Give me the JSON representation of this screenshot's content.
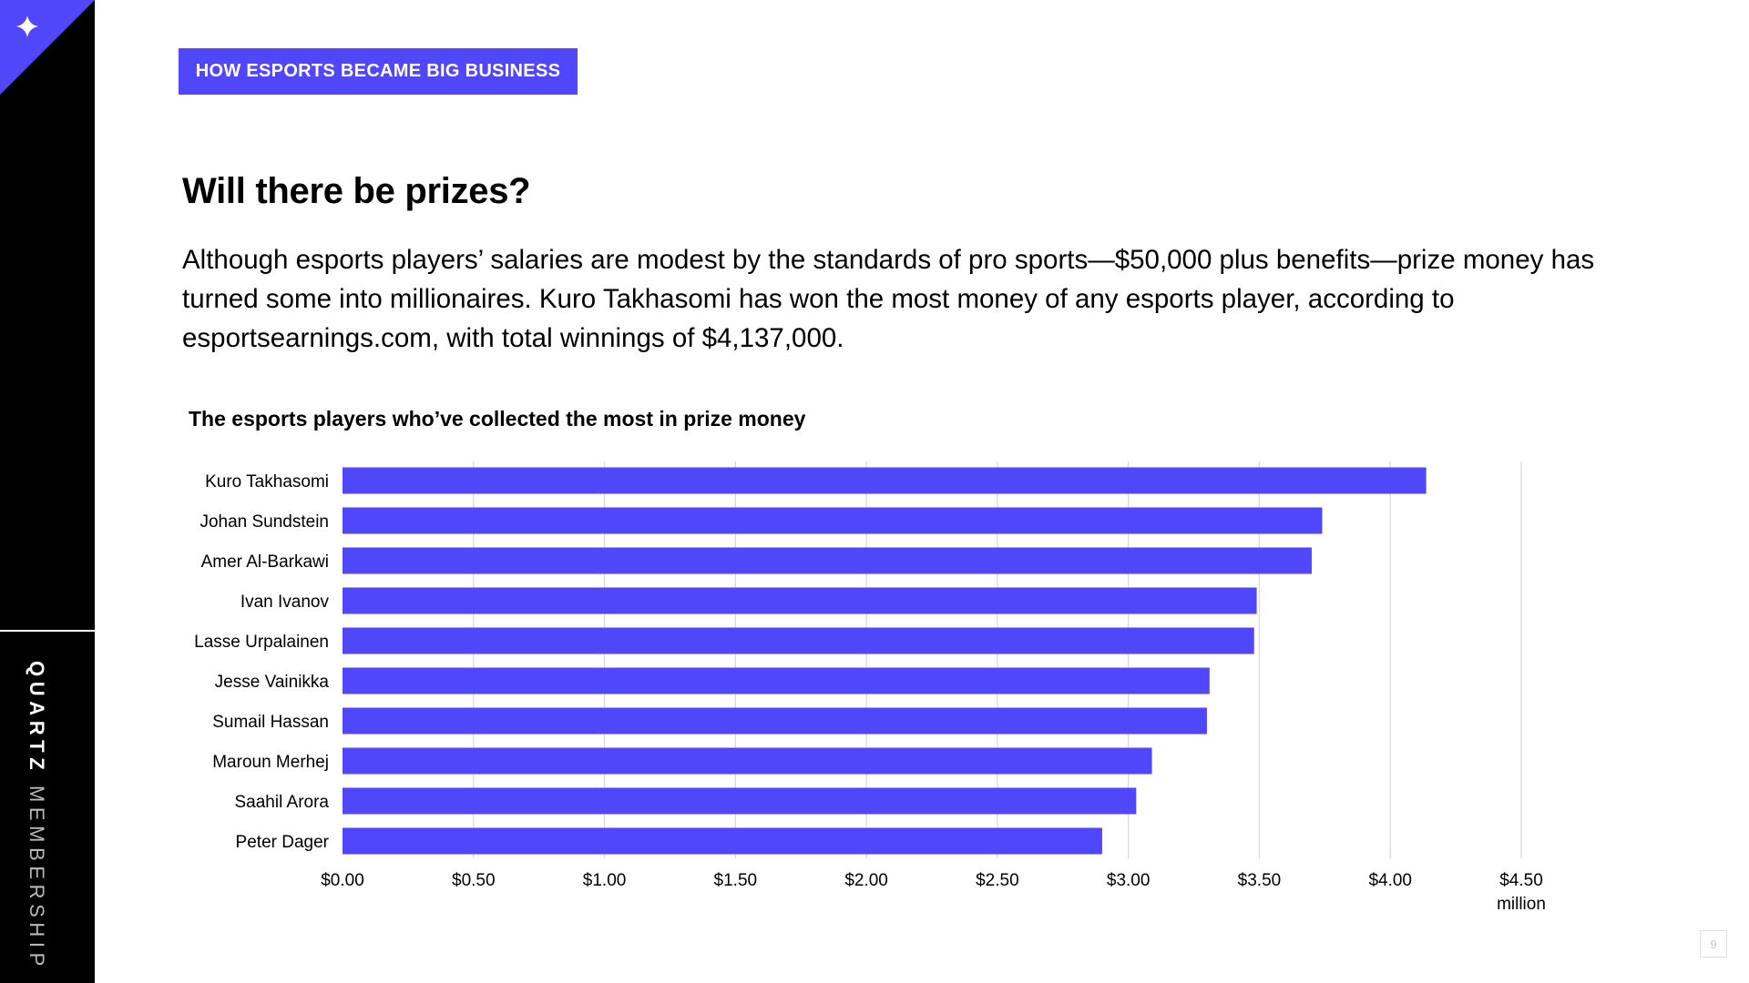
{
  "sidebar": {
    "brand": "QUARTZ",
    "label": "MEMBERSHIP",
    "corner_icon": "sparkle-icon",
    "accent_color": "#5046fa"
  },
  "section_tag": "HOW ESPORTS BECAME BIG BUSINESS",
  "title": "Will there be prizes?",
  "intro": "Although esports players’ salaries are modest by the standards of pro sports—$50,000 plus benefits—prize money has turned some into millionaires. Kuro Takhasomi has won the most money of any esports player, according to esportsearnings.com, with total winnings of $4,137,000.",
  "page_number": "9",
  "chart_data": {
    "type": "bar",
    "orientation": "horizontal",
    "title": "The esports players who’ve collected the most in prize money",
    "categories": [
      "Kuro Takhasomi",
      "Johan Sundstein",
      "Amer Al-Barkawi",
      "Ivan Ivanov",
      "Lasse Urpalainen",
      "Jesse Vainikka",
      "Sumail Hassan",
      "Maroun Merhej",
      "Saahil Arora",
      "Peter Dager"
    ],
    "values": [
      4.137,
      3.74,
      3.7,
      3.49,
      3.48,
      3.31,
      3.3,
      3.09,
      3.03,
      2.9
    ],
    "xlim": [
      0,
      4.5
    ],
    "x_ticks": [
      0,
      0.5,
      1,
      1.5,
      2,
      2.5,
      3,
      3.5,
      4,
      4.5
    ],
    "x_tick_labels": [
      "$0.00",
      "$0.50",
      "$1.00",
      "$1.50",
      "$2.00",
      "$2.50",
      "$3.00",
      "$3.50",
      "$4.00",
      "$4.50"
    ],
    "x_unit": "million",
    "bar_color": "#5046fa",
    "grid": true
  }
}
